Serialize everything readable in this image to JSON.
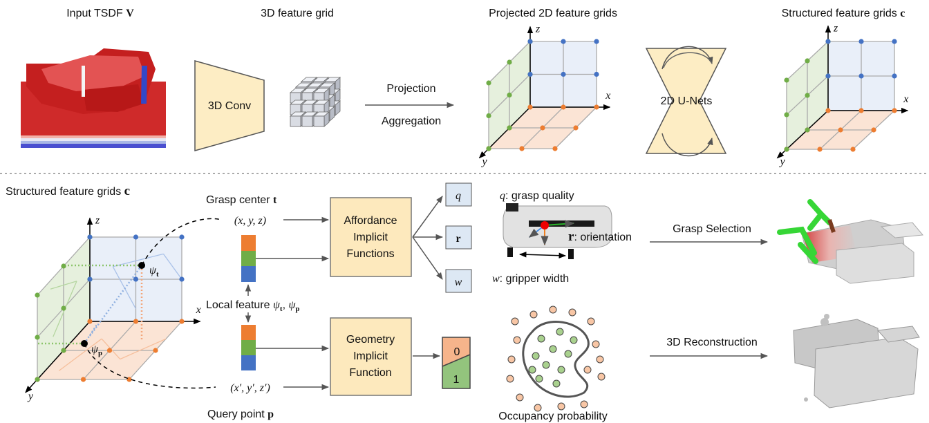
{
  "top": {
    "input": {
      "label": "Input TSDF",
      "symbol": "V"
    },
    "feature_grid": "3D feature grid",
    "conv": "3D Conv",
    "projection": "Projection",
    "aggregation": "Aggregation",
    "projected": "Projected 2D feature grids",
    "unet": "2D U-Nets",
    "structured": {
      "label": "Structured feature grids",
      "symbol": "c"
    }
  },
  "axes": {
    "x": "x",
    "y": "y",
    "z": "z"
  },
  "bottom": {
    "structured": {
      "label": "Structured feature grids",
      "symbol": "c"
    },
    "psi_t": {
      "symbol": "ψ",
      "sub": "t"
    },
    "psi_p": {
      "symbol": "ψ",
      "sub": "p"
    },
    "grasp_center": {
      "label": "Grasp center",
      "symbol": "t"
    },
    "grasp_point": "(x, y, z)",
    "local_feature": {
      "label": "Local feature",
      "terms": [
        {
          "symbol": "ψ",
          "sub": "t"
        },
        {
          "symbol": "ψ",
          "sub": "p"
        }
      ],
      "separator": ","
    },
    "query_point": "(x′, y′, z′)",
    "query": {
      "label": "Query point",
      "symbol": "p"
    },
    "affordance": [
      "Affordance",
      "Implicit",
      "Functions"
    ],
    "geometry": [
      "Geometry",
      "Implicit",
      "Function"
    ],
    "outputs": [
      {
        "symbol": "q",
        "description": ": grasp quality"
      },
      {
        "symbol": "r",
        "description": ": orientation"
      },
      {
        "symbol": "w",
        "description": ": gripper width"
      }
    ],
    "occupancy": {
      "labels": [
        "0",
        "1"
      ],
      "caption": "Occupancy probability"
    },
    "grasp_selection": "Grasp Selection",
    "reconstruction": "3D Reconstruction"
  }
}
